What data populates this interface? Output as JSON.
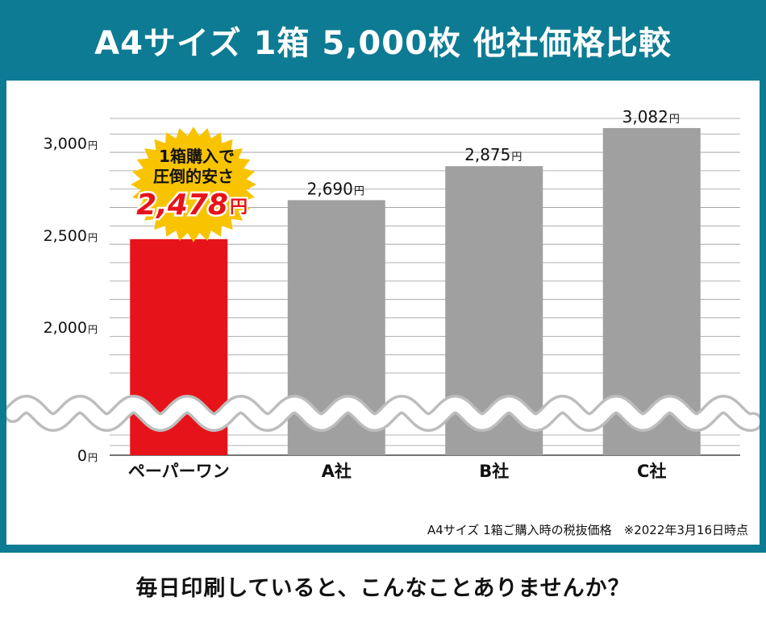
{
  "title": "A4サイズ 1箱 5,000枚 他社価格比較",
  "footnote": "A4サイズ 1箱ご購入時の税抜価格　※2022年3月16日時点",
  "question": "毎日印刷していると、こんなことありませんか？",
  "highlight": {
    "line1": "1箱購入で",
    "line2": "圧倒的安さ",
    "value": "2,478",
    "unit": "円",
    "color": "#e6141a",
    "burst_color": "#f8c400"
  },
  "chart_data": {
    "type": "bar",
    "categories": [
      "ペーパーワン",
      "A社",
      "B社",
      "C社"
    ],
    "values": [
      2478,
      2690,
      2875,
      3082
    ],
    "value_labels": [
      "",
      "2,690",
      "2,875",
      "3,082"
    ],
    "bar_colors": [
      "#e6141a",
      "#a0a0a0",
      "#a0a0a0",
      "#a0a0a0"
    ],
    "unit": "円",
    "y_ticks": [
      {
        "value": 0,
        "label": "0"
      },
      {
        "value": 2000,
        "label": "2,000"
      },
      {
        "value": 2500,
        "label": "2,500"
      },
      {
        "value": 3000,
        "label": "3,000"
      }
    ],
    "axis_break": true,
    "upper_range": [
      1750,
      3200
    ],
    "grid_step": 100,
    "grid": true,
    "legend": "none"
  }
}
